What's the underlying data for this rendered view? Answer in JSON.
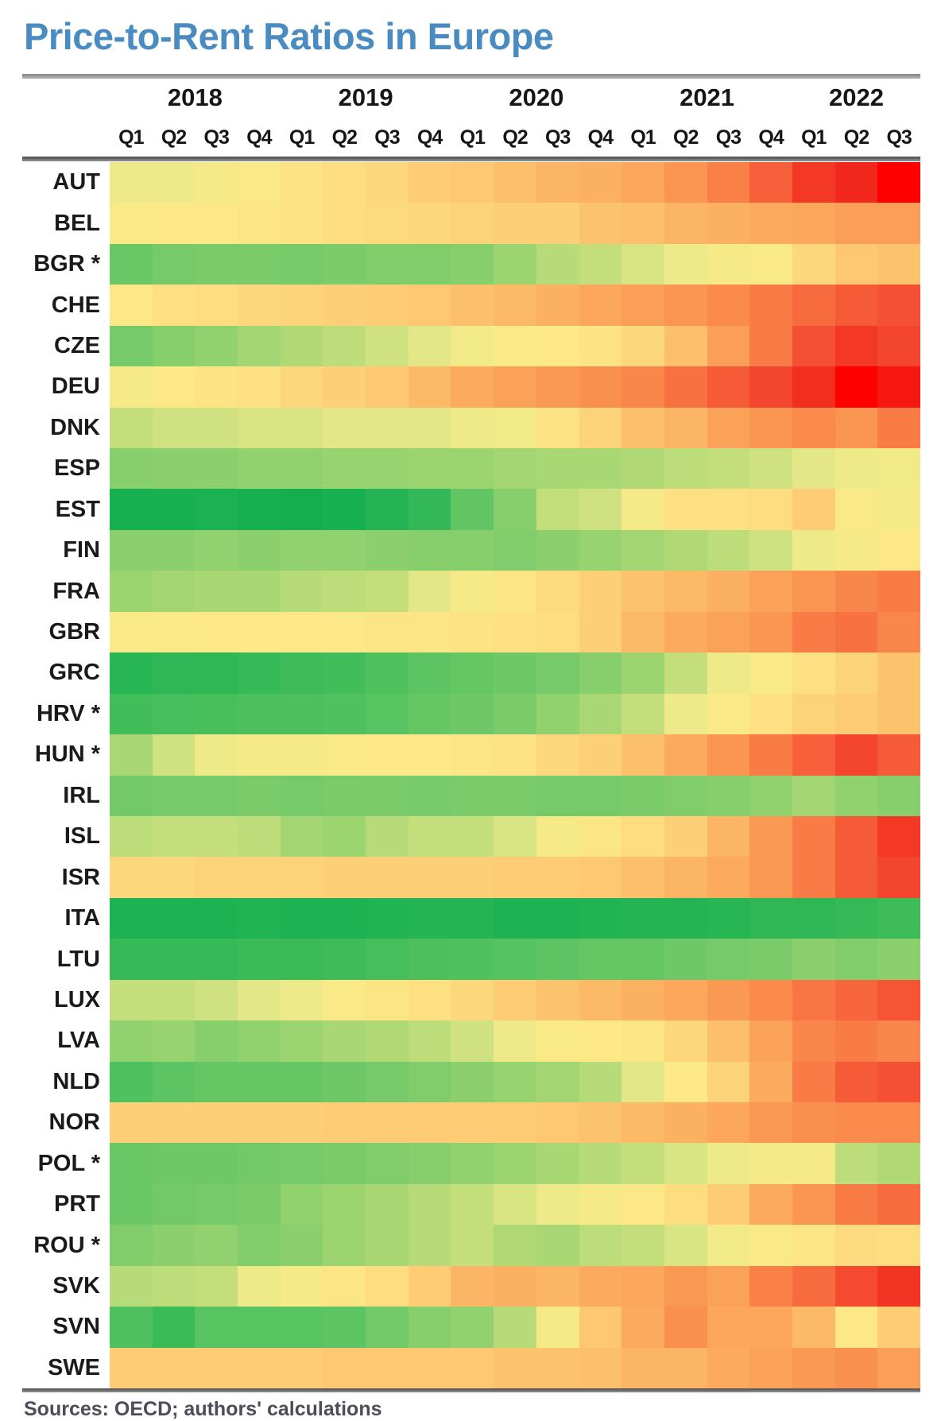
{
  "title": "Price-to-Rent Ratios in Europe",
  "footer": "Sources: OECD; authors' calculations",
  "colors": {
    "title_blue": "#4a8cc2",
    "header_text": "#161616",
    "row_label_text": "#1a1a1a",
    "rule_gray": "#6e6e6e",
    "scale_low_green": "#0faa4c",
    "scale_mid_yellow": "#ffeb84",
    "scale_high_red": "#fe0000"
  },
  "chart_data": {
    "type": "heatmap",
    "title": "Price-to-Rent Ratios in Europe",
    "years": [
      {
        "label": "2018",
        "quarters": 4
      },
      {
        "label": "2019",
        "quarters": 4
      },
      {
        "label": "2020",
        "quarters": 4
      },
      {
        "label": "2021",
        "quarters": 4
      },
      {
        "label": "2022",
        "quarters": 3
      }
    ],
    "quarter_labels": [
      "Q1",
      "Q2",
      "Q3",
      "Q4",
      "Q1",
      "Q2",
      "Q3",
      "Q4",
      "Q1",
      "Q2",
      "Q3",
      "Q4",
      "Q1",
      "Q2",
      "Q3",
      "Q4",
      "Q1",
      "Q2",
      "Q3"
    ],
    "x": [
      "2018 Q1",
      "2018 Q2",
      "2018 Q3",
      "2018 Q4",
      "2019 Q1",
      "2019 Q2",
      "2019 Q3",
      "2019 Q4",
      "2020 Q1",
      "2020 Q2",
      "2020 Q3",
      "2020 Q4",
      "2021 Q1",
      "2021 Q2",
      "2021 Q3",
      "2021 Q4",
      "2022 Q1",
      "2022 Q2",
      "2022 Q3"
    ],
    "value_scale": "Relative heat estimated from cell color: 0 = deep green (lowest price-to-rent ratio), 50 = pale yellow, 100 = bright red (highest). No numeric values are printed in the figure.",
    "legend": "none",
    "grid": "off",
    "colormap_stops": [
      [
        0,
        "#0faa4c"
      ],
      [
        8,
        "#17b151"
      ],
      [
        14,
        "#2bb654"
      ],
      [
        20,
        "#41bd5a"
      ],
      [
        27,
        "#5cc462"
      ],
      [
        34,
        "#7ccb6a"
      ],
      [
        40,
        "#9cd470"
      ],
      [
        46,
        "#c4de7c"
      ],
      [
        50,
        "#eeea8a"
      ],
      [
        54,
        "#fce886"
      ],
      [
        58,
        "#fddd7f"
      ],
      [
        62,
        "#fdd077"
      ],
      [
        66,
        "#fcbf6a"
      ],
      [
        70,
        "#fcab5e"
      ],
      [
        75,
        "#fa9552"
      ],
      [
        80,
        "#f97c46"
      ],
      [
        85,
        "#f7603a"
      ],
      [
        90,
        "#f4452e"
      ],
      [
        95,
        "#f1281b"
      ],
      [
        100,
        "#fe0000"
      ]
    ],
    "rows": [
      {
        "code": "AUT",
        "values": [
          50,
          50,
          52,
          53,
          56,
          58,
          60,
          63,
          64,
          66,
          68,
          69,
          71,
          75,
          79,
          85,
          92,
          95,
          100
        ]
      },
      {
        "code": "BEL",
        "values": [
          53,
          54,
          54,
          55,
          56,
          58,
          59,
          60,
          61,
          62,
          62,
          65,
          66,
          68,
          69,
          70,
          71,
          73,
          73
        ]
      },
      {
        "code": "BGR *",
        "values": [
          30,
          33,
          34,
          34,
          33,
          34,
          35,
          35,
          36,
          40,
          44,
          46,
          48,
          50,
          52,
          53,
          60,
          64,
          65
        ]
      },
      {
        "code": "CHE",
        "values": [
          54,
          57,
          58,
          60,
          61,
          62,
          63,
          64,
          66,
          67,
          69,
          71,
          73,
          75,
          77,
          80,
          83,
          86,
          88
        ]
      },
      {
        "code": "CZE",
        "values": [
          33,
          36,
          38,
          41,
          43,
          45,
          47,
          49,
          51,
          53,
          54,
          56,
          60,
          66,
          73,
          80,
          88,
          92,
          90
        ]
      },
      {
        "code": "DEU",
        "values": [
          52,
          54,
          56,
          57,
          60,
          62,
          64,
          67,
          70,
          72,
          74,
          76,
          78,
          82,
          86,
          90,
          94,
          100,
          97
        ]
      },
      {
        "code": "DNK",
        "values": [
          46,
          47,
          47,
          48,
          48,
          49,
          49,
          49,
          50,
          51,
          56,
          61,
          66,
          68,
          72,
          75,
          77,
          75,
          80
        ]
      },
      {
        "code": "ESP",
        "values": [
          36,
          37,
          37,
          38,
          38,
          39,
          39,
          40,
          40,
          41,
          42,
          42,
          43,
          45,
          46,
          47,
          49,
          50,
          51
        ]
      },
      {
        "code": "EST",
        "values": [
          8,
          8,
          9,
          7,
          5,
          8,
          12,
          16,
          28,
          36,
          46,
          47,
          52,
          57,
          57,
          58,
          63,
          53,
          52
        ]
      },
      {
        "code": "FIN",
        "values": [
          37,
          37,
          38,
          37,
          38,
          38,
          37,
          36,
          36,
          35,
          37,
          39,
          41,
          43,
          45,
          47,
          50,
          52,
          54
        ]
      },
      {
        "code": "FRA",
        "values": [
          40,
          41,
          42,
          42,
          44,
          45,
          46,
          49,
          52,
          55,
          59,
          62,
          65,
          67,
          69,
          72,
          75,
          78,
          80
        ]
      },
      {
        "code": "GBR",
        "values": [
          53,
          53,
          54,
          54,
          54,
          54,
          55,
          55,
          56,
          57,
          58,
          62,
          67,
          70,
          72,
          75,
          80,
          82,
          78
        ]
      },
      {
        "code": "GRC",
        "values": [
          13,
          15,
          15,
          17,
          19,
          20,
          24,
          27,
          29,
          31,
          33,
          36,
          40,
          46,
          50,
          53,
          57,
          61,
          65
        ]
      },
      {
        "code": "HRV *",
        "values": [
          20,
          21,
          22,
          23,
          23,
          24,
          26,
          29,
          31,
          34,
          38,
          42,
          46,
          50,
          53,
          57,
          61,
          63,
          65
        ]
      },
      {
        "code": "HUN *",
        "values": [
          42,
          47,
          50,
          52,
          52,
          53,
          54,
          54,
          55,
          56,
          60,
          62,
          66,
          70,
          75,
          80,
          85,
          90,
          86
        ]
      },
      {
        "code": "IRL",
        "values": [
          32,
          33,
          33,
          34,
          33,
          34,
          34,
          33,
          34,
          34,
          33,
          33,
          34,
          35,
          36,
          38,
          41,
          38,
          36
        ]
      },
      {
        "code": "ISL",
        "values": [
          45,
          46,
          46,
          45,
          41,
          40,
          44,
          46,
          46,
          48,
          52,
          55,
          58,
          62,
          68,
          74,
          80,
          86,
          92
        ]
      },
      {
        "code": "ISR",
        "values": [
          60,
          60,
          61,
          61,
          61,
          62,
          62,
          62,
          62,
          63,
          63,
          64,
          66,
          68,
          70,
          74,
          80,
          86,
          90
        ]
      },
      {
        "code": "ITA",
        "values": [
          10,
          10,
          10,
          11,
          10,
          10,
          11,
          12,
          12,
          10,
          10,
          11,
          12,
          12,
          13,
          15,
          15,
          17,
          19
        ]
      },
      {
        "code": "LTU",
        "values": [
          17,
          17,
          17,
          18,
          18,
          19,
          21,
          23,
          24,
          25,
          27,
          29,
          29,
          31,
          33,
          34,
          37,
          35,
          37
        ]
      },
      {
        "code": "LUX",
        "values": [
          46,
          46,
          47,
          49,
          50,
          53,
          55,
          57,
          60,
          63,
          65,
          67,
          69,
          71,
          74,
          77,
          81,
          84,
          87
        ]
      },
      {
        "code": "LVA",
        "values": [
          38,
          39,
          36,
          38,
          40,
          42,
          43,
          45,
          47,
          50,
          53,
          54,
          55,
          60,
          66,
          72,
          78,
          80,
          78
        ]
      },
      {
        "code": "NLD",
        "values": [
          24,
          27,
          29,
          29,
          29,
          31,
          33,
          35,
          37,
          39,
          41,
          44,
          49,
          54,
          61,
          70,
          80,
          86,
          88
        ]
      },
      {
        "code": "NOR",
        "values": [
          62,
          62,
          62,
          62,
          62,
          63,
          63,
          63,
          63,
          63,
          64,
          65,
          67,
          69,
          71,
          74,
          76,
          77,
          77
        ]
      },
      {
        "code": "POL *",
        "values": [
          30,
          31,
          31,
          32,
          33,
          34,
          35,
          36,
          38,
          40,
          42,
          44,
          46,
          48,
          50,
          52,
          52,
          45,
          43
        ]
      },
      {
        "code": "PRT",
        "values": [
          30,
          32,
          33,
          34,
          38,
          40,
          42,
          44,
          46,
          48,
          50,
          52,
          54,
          58,
          63,
          70,
          75,
          80,
          83
        ]
      },
      {
        "code": "ROU *",
        "values": [
          35,
          37,
          38,
          35,
          37,
          40,
          42,
          44,
          46,
          43,
          42,
          45,
          46,
          48,
          51,
          53,
          55,
          59,
          58
        ]
      },
      {
        "code": "SVK",
        "values": [
          44,
          45,
          46,
          50,
          52,
          55,
          58,
          63,
          68,
          69,
          68,
          70,
          71,
          74,
          72,
          79,
          83,
          89,
          93
        ]
      },
      {
        "code": "SVN",
        "values": [
          24,
          18,
          26,
          26,
          26,
          27,
          32,
          36,
          38,
          44,
          52,
          64,
          70,
          76,
          71,
          71,
          67,
          54,
          63
        ]
      },
      {
        "code": "SWE",
        "values": [
          63,
          63,
          63,
          63,
          63,
          64,
          64,
          64,
          64,
          65,
          65,
          66,
          68,
          68,
          70,
          72,
          74,
          76,
          73
        ]
      }
    ]
  }
}
